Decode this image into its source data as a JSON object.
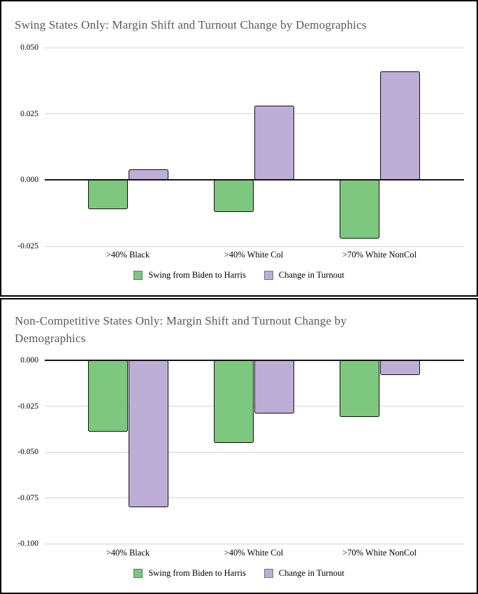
{
  "chart_data": [
    {
      "type": "bar",
      "title_lines": [
        "Swing States Only: Margin Shift and Turnout Change by Demographics"
      ],
      "categories": [
        ">40% Black",
        ">40% White Col",
        ">70% White NonCol"
      ],
      "series": [
        {
          "name": "Swing from Biden to Harris",
          "color": "#7ec77e",
          "values": [
            -0.011,
            -0.012,
            -0.022
          ]
        },
        {
          "name": "Change in Turnout",
          "color": "#bcaed6",
          "values": [
            0.004,
            0.028,
            0.041
          ]
        }
      ],
      "ylim": [
        -0.025,
        0.05
      ],
      "yticks": [
        {
          "label": "0.050",
          "value": 0.05
        },
        {
          "label": "0.025",
          "value": 0.025
        },
        {
          "label": "0.000",
          "value": 0.0
        },
        {
          "label": "-0.025",
          "value": -0.025
        }
      ],
      "xlabel": "",
      "ylabel": "",
      "grid": "horizontal",
      "legend_position": "bottom",
      "title_color": "#595959"
    },
    {
      "type": "bar",
      "title_lines": [
        "Non-Competitive States Only: Margin Shift and Turnout Change by",
        "Demographics"
      ],
      "categories": [
        ">40% Black",
        ">40% White Col",
        ">70% White NonCol"
      ],
      "series": [
        {
          "name": "Swing from Biden to Harris",
          "color": "#7ec77e",
          "values": [
            -0.039,
            -0.045,
            -0.031
          ]
        },
        {
          "name": "Change in Turnout",
          "color": "#bcaed6",
          "values": [
            -0.08,
            -0.029,
            -0.008
          ]
        }
      ],
      "ylim": [
        -0.1,
        0.0
      ],
      "yticks": [
        {
          "label": "0.000",
          "value": 0.0
        },
        {
          "label": "-0.025",
          "value": -0.025
        },
        {
          "label": "-0.050",
          "value": -0.05
        },
        {
          "label": "-0.075",
          "value": -0.075
        },
        {
          "label": "-0.100",
          "value": -0.1
        }
      ],
      "xlabel": "",
      "ylabel": "",
      "grid": "horizontal",
      "legend_position": "bottom",
      "title_color": "#595959"
    }
  ]
}
